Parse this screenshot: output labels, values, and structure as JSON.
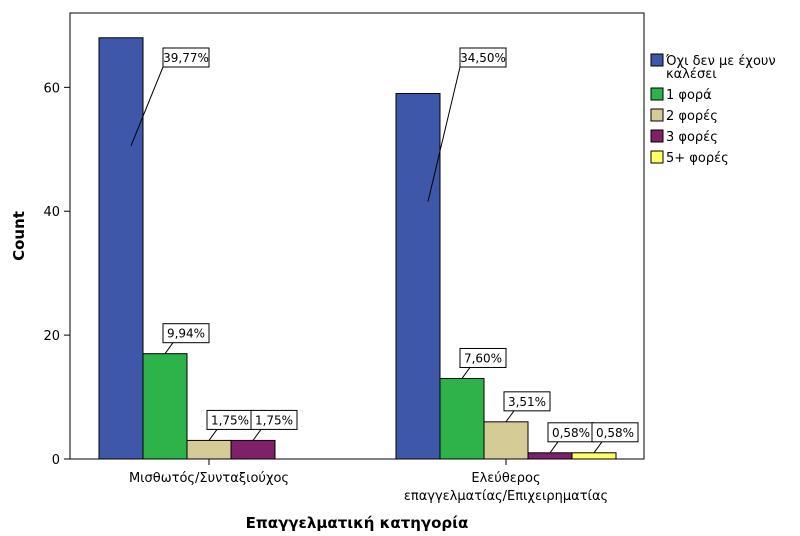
{
  "chart_data": {
    "type": "bar",
    "title": "",
    "xlabel": "Επαγγελματική κατηγορία",
    "ylabel": "Count",
    "ylim": [
      0,
      72
    ],
    "yticks": [
      0,
      20,
      40,
      60
    ],
    "grid": false,
    "legend_position": "right",
    "categories": [
      [
        "Μισθωτός/Συνταξιούχος"
      ],
      [
        "Ελεύθερος",
        "επαγγελματίας/Επιχειρηματίας"
      ]
    ],
    "series": [
      {
        "name": [
          "Όχι δεν με έχουν",
          "καλέσει"
        ],
        "color": "#3F57A8",
        "values": [
          68,
          59
        ],
        "labels": [
          "39,77%",
          "34,50%"
        ]
      },
      {
        "name": [
          "1 φορά"
        ],
        "color": "#2DB34A",
        "values": [
          17,
          13
        ],
        "labels": [
          "9,94%",
          "7,60%"
        ]
      },
      {
        "name": [
          "2 φορές"
        ],
        "color": "#D4CB97",
        "values": [
          3,
          6
        ],
        "labels": [
          "1,75%",
          "3,51%"
        ]
      },
      {
        "name": [
          "3 φορές"
        ],
        "color": "#7D2268",
        "values": [
          3,
          1
        ],
        "labels": [
          "1,75%",
          "0,58%"
        ]
      },
      {
        "name": [
          "5+ φορές"
        ],
        "color": "#FFFF66",
        "values": [
          0,
          1
        ],
        "labels": [
          null,
          "0,58%"
        ]
      }
    ]
  }
}
